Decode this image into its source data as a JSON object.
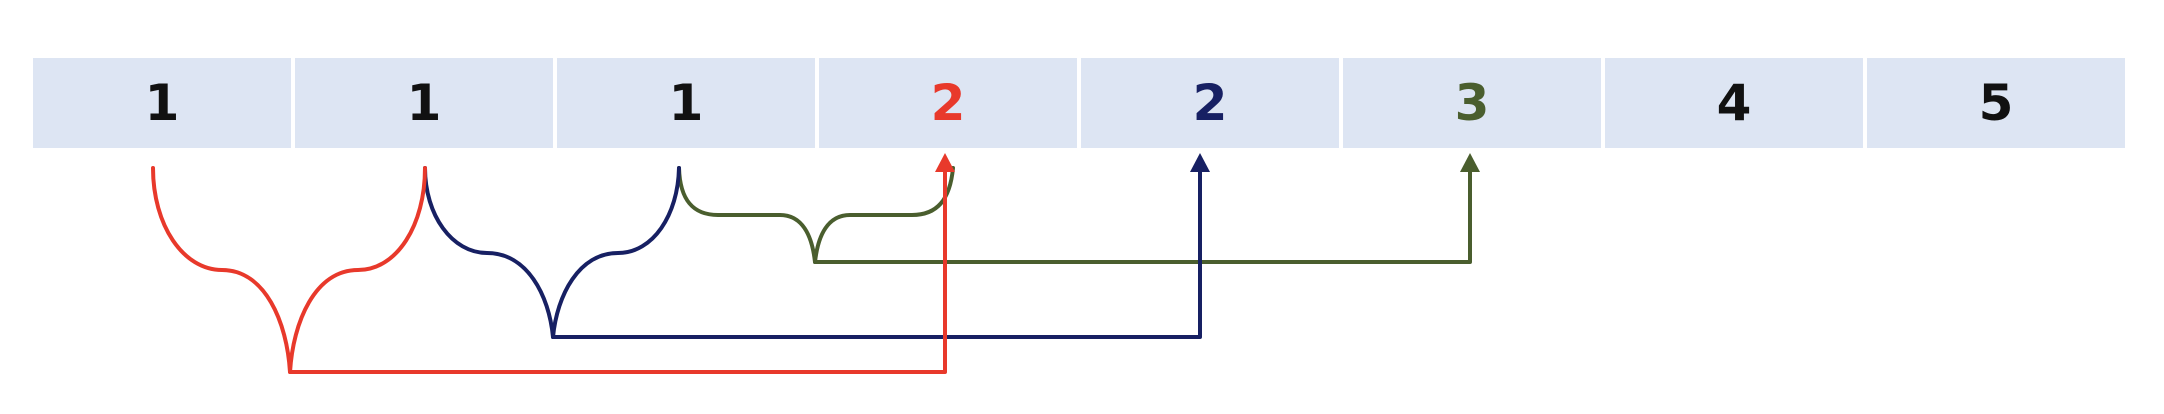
{
  "sequence": {
    "cells": [
      {
        "value": "1",
        "color": "#111111"
      },
      {
        "value": "1",
        "color": "#111111"
      },
      {
        "value": "1",
        "color": "#111111"
      },
      {
        "value": "2",
        "color": "#e8392b"
      },
      {
        "value": "2",
        "color": "#172063"
      },
      {
        "value": "3",
        "color": "#4a5e2e"
      },
      {
        "value": "4",
        "color": "#111111"
      },
      {
        "value": "5",
        "color": "#111111"
      }
    ]
  },
  "links": [
    {
      "name": "red-link",
      "color": "#e8392b",
      "from_cells": [
        0,
        1
      ],
      "to_cell": 3
    },
    {
      "name": "navy-link",
      "color": "#172063",
      "from_cells": [
        1,
        2
      ],
      "to_cell": 4
    },
    {
      "name": "green-link",
      "color": "#4a5e2e",
      "from_cells": [
        2,
        3
      ],
      "to_cell": 5
    }
  ]
}
